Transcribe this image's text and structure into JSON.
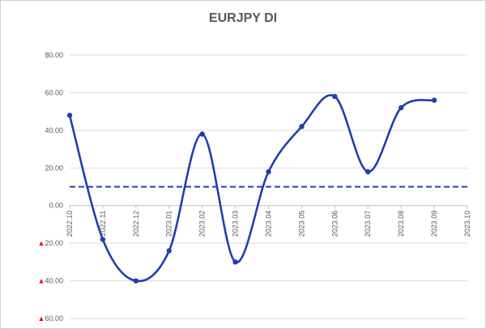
{
  "chart_data": {
    "type": "line",
    "title": "EURJPY DI",
    "categories": [
      "2022.10",
      "2022.11",
      "2022.12",
      "2023.01",
      "2023.02",
      "2023.03",
      "2023.04",
      "2023.05",
      "2023.06",
      "2023.07",
      "2023.08",
      "2023.09",
      "2023.10"
    ],
    "series": [
      {
        "values": [
          48,
          -18,
          -40,
          -24,
          38,
          -30,
          18,
          42,
          58,
          18,
          52,
          56,
          null
        ],
        "color": "#1f3fae"
      }
    ],
    "reference_line": {
      "value": 10,
      "style": "dashed",
      "color": "#1f3fae"
    },
    "y_ticks": [
      {
        "value": 80,
        "label": "80.00"
      },
      {
        "value": 60,
        "label": "60.00"
      },
      {
        "value": 40,
        "label": "40.00"
      },
      {
        "value": 20,
        "label": "20.00"
      },
      {
        "value": 0,
        "label": "0.00"
      },
      {
        "value": -20,
        "label": "▲20.00"
      },
      {
        "value": -40,
        "label": "▲40.00"
      },
      {
        "value": -60,
        "label": "▲60.00"
      }
    ],
    "ylim": [
      -60,
      80
    ],
    "grid": "horizontal",
    "negative_marker_color": "#ff0000",
    "gridline_color": "#d9d9d9"
  }
}
